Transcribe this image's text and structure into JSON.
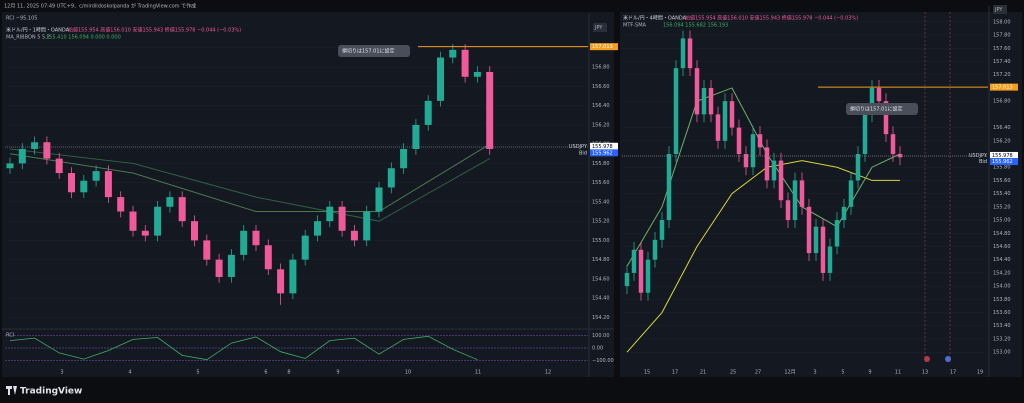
{
  "header": {
    "caption": "12月 11, 2025 07:49 UTC+9、c/mirdildoskolpanda が TradingView.com で作成"
  },
  "brand": "TradingView",
  "candle_colors": {
    "up": "#22ab94",
    "down": "#f0599a"
  },
  "stop_line_color": "#f59d1c",
  "panes": [
    {
      "legend": "米ドル/円・1時間・OANDA",
      "ohlc_text": "始値155.954 高値156.010 安値155.943 終値155.978 −0.044 (−0.03%)",
      "indicator": "MA_RIBBON 5 5.2",
      "indicator_values": "155.410 156.094 0.000 0.000",
      "top_label": "RCI −95.105",
      "currency": "JPY",
      "annotation": "損切りは157.01に設定",
      "ylim": [
        154.09,
        157.29
      ],
      "yticks": [
        {
          "value": 157,
          "label": "157.00"
        },
        {
          "value": 156.8,
          "label": "156.80"
        },
        {
          "value": 156.6,
          "label": "156.60"
        },
        {
          "value": 156.4,
          "label": "156.40"
        },
        {
          "value": 156.2,
          "label": "156.20"
        },
        {
          "value": 156,
          "label": "156.00"
        },
        {
          "value": 155.8,
          "label": "155.80"
        },
        {
          "value": 155.6,
          "label": "155.60"
        },
        {
          "value": 155.4,
          "label": "155.40"
        },
        {
          "value": 155.2,
          "label": "155.20"
        },
        {
          "value": 155,
          "label": "155.00"
        },
        {
          "value": 154.8,
          "label": "154.80"
        },
        {
          "value": 154.6,
          "label": "154.60"
        },
        {
          "value": 154.4,
          "label": "154.40"
        },
        {
          "value": 154.2,
          "label": "154.20"
        }
      ],
      "xlabels": [
        "3",
        "4",
        "5",
        "6",
        "8",
        "9",
        "10",
        "11",
        "12"
      ],
      "tags": [
        {
          "value": 157.013,
          "label": "157.013",
          "color": "#f59d1c"
        },
        {
          "value": 155.978,
          "label": "155.978",
          "prefix": "USDJPY",
          "color": "#ffffff"
        },
        {
          "value": 155.962,
          "label": "155.962",
          "prefix": "Bid",
          "color": "#2962ff"
        }
      ],
      "candles": [
        [
          155.75,
          155.86,
          155.69,
          155.8
        ],
        [
          155.8,
          156.01,
          155.74,
          155.95
        ],
        [
          155.95,
          156.08,
          155.89,
          156.02
        ],
        [
          156.02,
          156.08,
          155.79,
          155.85
        ],
        [
          155.85,
          155.91,
          155.64,
          155.7
        ],
        [
          155.7,
          155.76,
          155.44,
          155.5
        ],
        [
          155.5,
          155.68,
          155.44,
          155.62
        ],
        [
          155.62,
          155.78,
          155.56,
          155.72
        ],
        [
          155.72,
          155.78,
          155.39,
          155.45
        ],
        [
          155.45,
          155.51,
          155.24,
          155.3
        ],
        [
          155.3,
          155.36,
          155.04,
          155.1
        ],
        [
          155.1,
          155.16,
          154.99,
          155.05
        ],
        [
          155.05,
          155.41,
          154.99,
          155.35
        ],
        [
          155.35,
          155.51,
          155.29,
          155.45
        ],
        [
          155.45,
          155.51,
          155.14,
          155.2
        ],
        [
          155.2,
          155.26,
          154.94,
          155
        ],
        [
          155,
          155.06,
          154.74,
          154.8
        ],
        [
          154.8,
          154.86,
          154.56,
          154.62
        ],
        [
          154.62,
          154.91,
          154.56,
          154.85
        ],
        [
          154.85,
          155.16,
          154.79,
          155.1
        ],
        [
          155.1,
          155.16,
          154.89,
          154.95
        ],
        [
          154.95,
          155.01,
          154.64,
          154.7
        ],
        [
          154.7,
          154.76,
          154.33,
          154.45
        ],
        [
          154.45,
          154.86,
          154.39,
          154.8
        ],
        [
          154.8,
          155.11,
          154.74,
          155.05
        ],
        [
          155.05,
          155.26,
          154.99,
          155.2
        ],
        [
          155.2,
          155.41,
          155.14,
          155.35
        ],
        [
          155.35,
          155.41,
          155.04,
          155.1
        ],
        [
          155.1,
          155.16,
          154.94,
          155
        ],
        [
          155,
          155.36,
          154.94,
          155.3
        ],
        [
          155.3,
          155.61,
          155.24,
          155.55
        ],
        [
          155.55,
          155.81,
          155.49,
          155.75
        ],
        [
          155.75,
          156.01,
          155.69,
          155.95
        ],
        [
          155.95,
          156.26,
          155.89,
          156.2
        ],
        [
          156.2,
          156.51,
          156.14,
          156.45
        ],
        [
          156.45,
          156.96,
          156.39,
          156.9
        ],
        [
          156.9,
          157.04,
          156.84,
          156.98
        ],
        [
          156.98,
          157.04,
          156.64,
          156.7
        ],
        [
          156.7,
          156.81,
          156.64,
          156.75
        ],
        [
          156.75,
          156.81,
          155.89,
          155.95
        ]
      ],
      "mas": [
        {
          "color": "#4c7a4c",
          "x": [
            0,
            10,
            20,
            30,
            39
          ],
          "values": [
            155.9,
            155.7,
            155.3,
            155.3,
            156
          ]
        },
        {
          "color": "#2f5f45",
          "x": [
            0,
            10,
            20,
            30,
            39
          ],
          "values": [
            155.95,
            155.8,
            155.45,
            155.2,
            155.85
          ]
        }
      ],
      "rci": {
        "label": "RCI",
        "color": "#3fae6a",
        "ylim": [
          -130,
          130
        ],
        "yticks": [
          {
            "value": 100,
            "label": "100.00"
          },
          {
            "value": 0,
            "label": "0.00"
          },
          {
            "value": -100,
            "label": "−100.00"
          }
        ],
        "x": [
          0,
          2,
          4,
          6,
          8,
          10,
          12,
          14,
          16,
          18,
          20,
          22,
          24,
          26,
          28,
          30,
          32,
          34,
          36,
          38
        ],
        "values": [
          60,
          80,
          -40,
          -90,
          -20,
          70,
          85,
          -60,
          -95,
          40,
          90,
          -30,
          -85,
          60,
          80,
          -50,
          70,
          95,
          -10,
          -95
        ]
      }
    },
    {
      "legend": "米ドル/円・4時間・OANDA",
      "ohlc_text": "始値155.954 高値156.010 安値155.943 終値155.978 −0.044 (−0.03%)",
      "indicator": "MTF-SMA",
      "indicator_values": "156.094 155.682 156.193",
      "currency": "JPY",
      "annotation": "損切りは157.01に設定",
      "ylim": [
        152.73,
        158.15
      ],
      "yticks": [
        {
          "value": 158,
          "label": "158.00"
        },
        {
          "value": 157.8,
          "label": "157.80"
        },
        {
          "value": 157.6,
          "label": "157.60"
        },
        {
          "value": 157.4,
          "label": "157.40"
        },
        {
          "value": 157.2,
          "label": "157.20"
        },
        {
          "value": 156.8,
          "label": "156.80"
        },
        {
          "value": 156.4,
          "label": "156.40"
        },
        {
          "value": 156.2,
          "label": "156.20"
        },
        {
          "value": 155.8,
          "label": "155.80"
        },
        {
          "value": 155.6,
          "label": "155.60"
        },
        {
          "value": 155.4,
          "label": "155.40"
        },
        {
          "value": 155.2,
          "label": "155.20"
        },
        {
          "value": 155,
          "label": "155.00"
        },
        {
          "value": 154.8,
          "label": "154.80"
        },
        {
          "value": 154.6,
          "label": "154.60"
        },
        {
          "value": 154.4,
          "label": "154.40"
        },
        {
          "value": 154.2,
          "label": "154.20"
        },
        {
          "value": 154,
          "label": "154.00"
        },
        {
          "value": 153.8,
          "label": "153.80"
        },
        {
          "value": 153.6,
          "label": "153.60"
        },
        {
          "value": 153.4,
          "label": "153.40"
        },
        {
          "value": 153.2,
          "label": "153.20"
        },
        {
          "value": 153,
          "label": "153.00"
        }
      ],
      "xlabels": [
        "15",
        "17",
        "21",
        "25",
        "27",
        "12月",
        "3",
        "5",
        "9",
        "11",
        "13",
        "17",
        "19"
      ],
      "tags": [
        {
          "value": 157.013,
          "label": "157.013",
          "color": "#f59d1c"
        },
        {
          "value": 155.978,
          "label": "155.978",
          "prefix": "USDJPY",
          "color": "#ffffff"
        },
        {
          "value": 155.962,
          "label": "155.962",
          "prefix": "Bid",
          "color": "#2962ff"
        }
      ],
      "candles": [
        [
          154,
          154.32,
          153.88,
          154.2
        ],
        [
          154.2,
          154.67,
          154.08,
          154.55
        ],
        [
          154.55,
          154.67,
          153.78,
          153.9
        ],
        [
          153.9,
          154.52,
          153.78,
          154.4
        ],
        [
          154.4,
          154.82,
          154.28,
          154.7
        ],
        [
          154.7,
          155.12,
          154.58,
          155
        ],
        [
          155,
          156.12,
          154.88,
          156
        ],
        [
          156,
          157.42,
          155.88,
          157.3
        ],
        [
          157.3,
          157.87,
          157.18,
          157.75
        ],
        [
          157.75,
          157.87,
          157.18,
          157.3
        ],
        [
          157.3,
          157.42,
          156.48,
          156.6
        ],
        [
          156.6,
          157.12,
          156.48,
          157
        ],
        [
          157,
          157.12,
          156.48,
          156.6
        ],
        [
          156.6,
          156.72,
          156.08,
          156.2
        ],
        [
          156.2,
          156.92,
          156.08,
          156.8
        ],
        [
          156.8,
          156.92,
          156.28,
          156.4
        ],
        [
          156.4,
          156.52,
          155.88,
          156
        ],
        [
          156,
          156.12,
          155.68,
          155.8
        ],
        [
          155.8,
          156.42,
          155.68,
          156.3
        ],
        [
          156.3,
          156.42,
          155.98,
          156.1
        ],
        [
          156.1,
          156.22,
          155.48,
          155.6
        ],
        [
          155.6,
          156.02,
          155.48,
          155.9
        ],
        [
          155.9,
          156.02,
          155.18,
          155.3
        ],
        [
          155.3,
          155.42,
          154.88,
          155
        ],
        [
          155,
          155.72,
          154.88,
          155.6
        ],
        [
          155.6,
          155.72,
          155.08,
          155.2
        ],
        [
          155.2,
          155.32,
          154.38,
          154.5
        ],
        [
          154.5,
          155.02,
          154.38,
          154.9
        ],
        [
          154.9,
          155.02,
          154.08,
          154.2
        ],
        [
          154.2,
          154.72,
          154.08,
          154.6
        ],
        [
          154.6,
          155.12,
          154.48,
          155
        ],
        [
          155,
          155.32,
          154.88,
          155.2
        ],
        [
          155.2,
          155.72,
          155.08,
          155.6
        ],
        [
          155.6,
          156.12,
          155.48,
          156
        ],
        [
          156,
          156.72,
          155.88,
          156.6
        ],
        [
          156.6,
          157.12,
          156.48,
          157
        ],
        [
          157,
          157.12,
          156.68,
          156.8
        ],
        [
          156.8,
          156.92,
          156.18,
          156.3
        ],
        [
          156.3,
          156.42,
          155.88,
          156
        ],
        [
          156,
          156.12,
          155.83,
          155.95
        ]
      ],
      "mas": [
        {
          "color": "#d8d43a",
          "x": [
            0,
            5,
            10,
            15,
            20,
            25,
            30,
            35,
            39
          ],
          "values": [
            153,
            153.6,
            154.6,
            155.4,
            155.8,
            155.9,
            155.8,
            155.6,
            155.6
          ]
        },
        {
          "color": "#6fb36a",
          "x": [
            0,
            5,
            10,
            15,
            20,
            25,
            30,
            35,
            39
          ],
          "values": [
            154.3,
            155.2,
            156.8,
            157,
            156,
            155.2,
            154.9,
            155.8,
            156
          ]
        }
      ]
    }
  ]
}
